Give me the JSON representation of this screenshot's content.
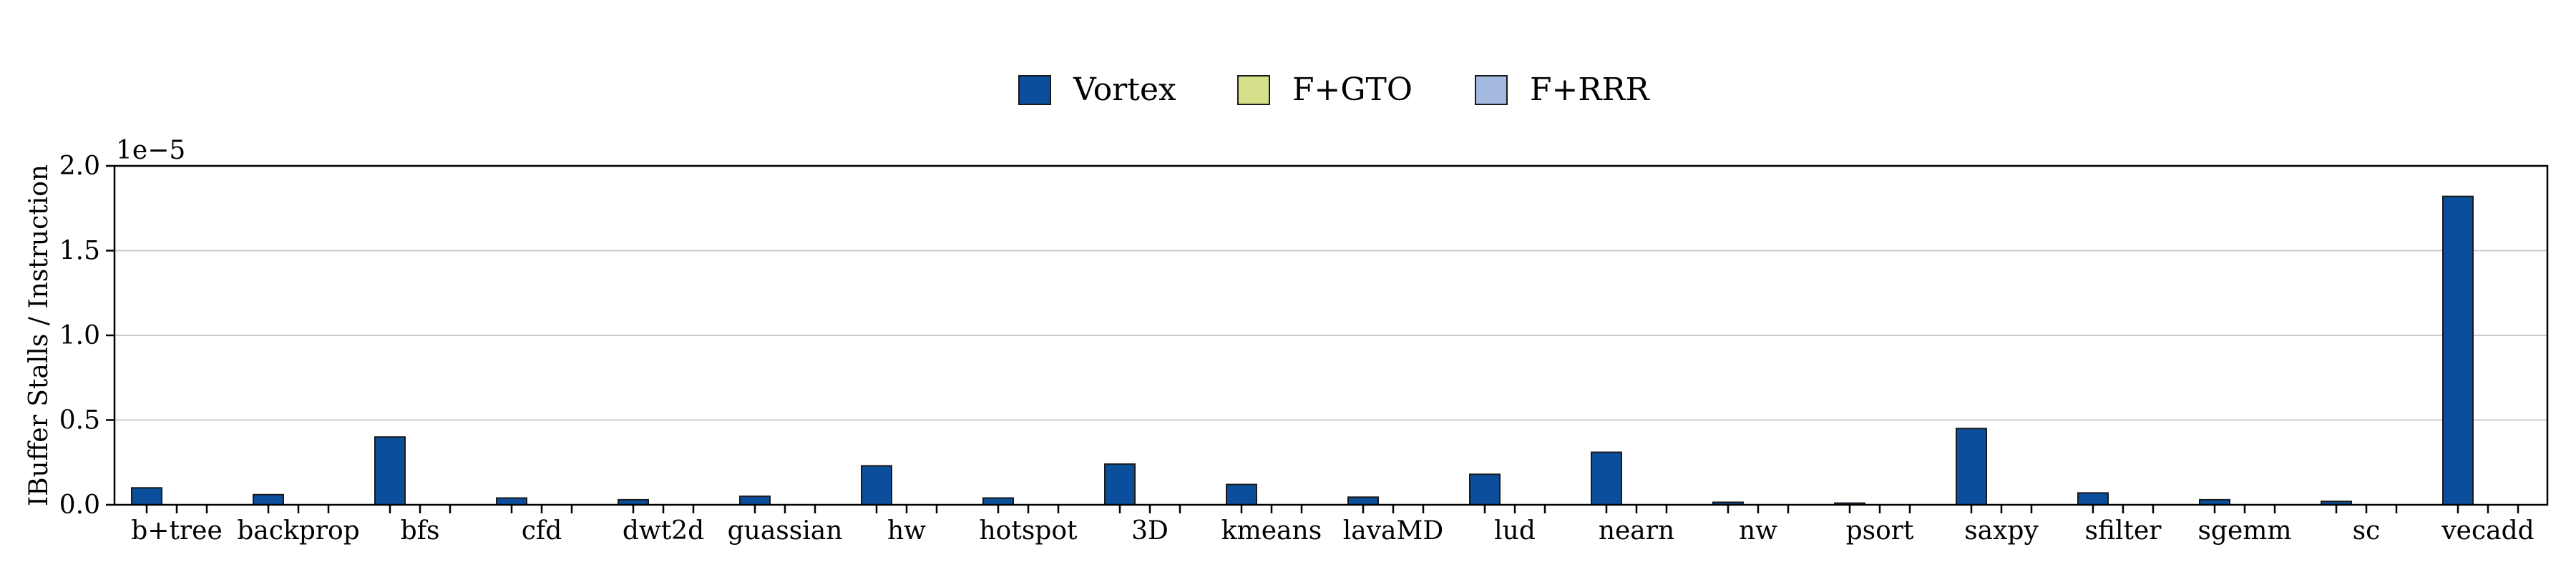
{
  "chart_data": {
    "type": "bar",
    "title": "",
    "xlabel": "",
    "ylabel": "IBuffer Stalls / Instruction",
    "y_offset_label": "1e−5",
    "y_scale": 1e-05,
    "ylim": [
      0,
      2.0
    ],
    "yticks": [
      "0.0",
      "0.5",
      "1.0",
      "1.5",
      "2.0"
    ],
    "ytick_values": [
      0.0,
      0.5,
      1.0,
      1.5,
      2.0
    ],
    "grid": "horizontal",
    "legend_position": "top-center",
    "categories": [
      "b+tree",
      "backprop",
      "bfs",
      "cfd",
      "dwt2d",
      "guassian",
      "hw",
      "hotspot",
      "3D",
      "kmeans",
      "lavaMD",
      "lud",
      "nearn",
      "nw",
      "psort",
      "saxpy",
      "sfilter",
      "sgemm",
      "sc",
      "vecadd"
    ],
    "series": [
      {
        "name": "Vortex",
        "color": "#0b4f9c",
        "values": [
          0.1,
          0.06,
          0.4,
          0.04,
          0.03,
          0.05,
          0.23,
          0.04,
          0.24,
          0.12,
          0.045,
          0.18,
          0.31,
          0.015,
          0.01,
          0.45,
          0.07,
          0.03,
          0.02,
          1.82
        ]
      },
      {
        "name": "F+GTO",
        "color": "#d6e08a",
        "values": [
          0,
          0,
          0,
          0,
          0,
          0,
          0,
          0,
          0,
          0,
          0,
          0,
          0,
          0,
          0,
          0,
          0,
          0,
          0,
          0
        ]
      },
      {
        "name": "F+RRR",
        "color": "#a3b9e0",
        "values": [
          0,
          0,
          0,
          0,
          0,
          0,
          0,
          0,
          0,
          0,
          0,
          0,
          0,
          0,
          0,
          0,
          0,
          0,
          0,
          0
        ]
      }
    ]
  }
}
